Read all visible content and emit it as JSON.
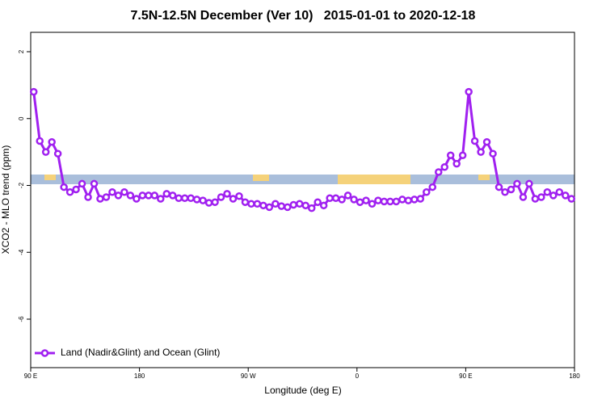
{
  "chart_data": {
    "type": "line",
    "title": "7.5N-12.5N December (Ver 10)   2015-01-01 to 2020-12-18",
    "xlabel": "Longitude (deg E)",
    "ylabel": "XCO2 - MLO trend (ppm)",
    "xlim": [
      90,
      540
    ],
    "ylim": [
      -7.45,
      2.58
    ],
    "xticks": [
      {
        "value": 90,
        "label": "90 E"
      },
      {
        "value": 180,
        "label": "180"
      },
      {
        "value": 270,
        "label": "90 W"
      },
      {
        "value": 360,
        "label": "0"
      },
      {
        "value": 450,
        "label": "90 E"
      },
      {
        "value": 540,
        "label": "180"
      }
    ],
    "yticks": [
      2,
      0,
      -2,
      -4,
      -6
    ],
    "legend": "bottom-left",
    "x": [
      92.5,
      97.5,
      102.5,
      107.5,
      112.5,
      117.5,
      122.5,
      127.5,
      132.5,
      137.5,
      142.5,
      147.5,
      152.5,
      157.5,
      162.5,
      167.5,
      172.5,
      177.5,
      182.5,
      187.5,
      192.5,
      197.5,
      202.5,
      207.5,
      212.5,
      217.5,
      222.5,
      227.5,
      232.5,
      237.5,
      242.5,
      247.5,
      252.5,
      257.5,
      262.5,
      267.5,
      272.5,
      277.5,
      282.5,
      287.5,
      292.5,
      297.5,
      302.5,
      307.5,
      312.5,
      317.5,
      322.5,
      327.5,
      332.5,
      337.5,
      342.5,
      347.5,
      352.5,
      357.5,
      362.5,
      367.5,
      372.5,
      377.5,
      382.5,
      387.5,
      392.5,
      397.5,
      402.5,
      407.5,
      412.5,
      417.5,
      422.5,
      427.5,
      432.5,
      437.5,
      442.5,
      447.5,
      452.5,
      457.5,
      462.5,
      467.5,
      472.5,
      477.5,
      482.5,
      487.5,
      492.5,
      497.5,
      502.5,
      507.5,
      512.5,
      517.5,
      522.5,
      527.5,
      532.5,
      537.5
    ],
    "series": [
      {
        "name": "Land (Nadir&Glint) and Ocean (Glint)",
        "color": "#a020f0",
        "values": [
          0.8,
          -0.67,
          -1.0,
          -0.7,
          -1.05,
          -2.05,
          -2.2,
          -2.12,
          -1.95,
          -2.35,
          -1.95,
          -2.4,
          -2.35,
          -2.2,
          -2.3,
          -2.2,
          -2.3,
          -2.4,
          -2.3,
          -2.3,
          -2.3,
          -2.4,
          -2.25,
          -2.3,
          -2.38,
          -2.38,
          -2.38,
          -2.42,
          -2.45,
          -2.52,
          -2.5,
          -2.35,
          -2.25,
          -2.4,
          -2.32,
          -2.5,
          -2.55,
          -2.55,
          -2.6,
          -2.65,
          -2.55,
          -2.62,
          -2.65,
          -2.58,
          -2.55,
          -2.6,
          -2.68,
          -2.5,
          -2.6,
          -2.38,
          -2.38,
          -2.42,
          -2.3,
          -2.42,
          -2.5,
          -2.45,
          -2.55,
          -2.45,
          -2.48,
          -2.48,
          -2.48,
          -2.42,
          -2.45,
          -2.42,
          -2.4,
          -2.2,
          -2.05,
          -1.6,
          -1.45,
          -1.1,
          -1.35,
          -1.1,
          0.8,
          -0.67,
          -1.0,
          -0.7,
          -1.05,
          -2.05,
          -2.2,
          -2.12,
          -1.95,
          -2.35,
          -1.95,
          -2.4,
          -2.35,
          -2.2,
          -2.3,
          -2.2,
          -2.3,
          -2.4
        ]
      }
    ]
  }
}
